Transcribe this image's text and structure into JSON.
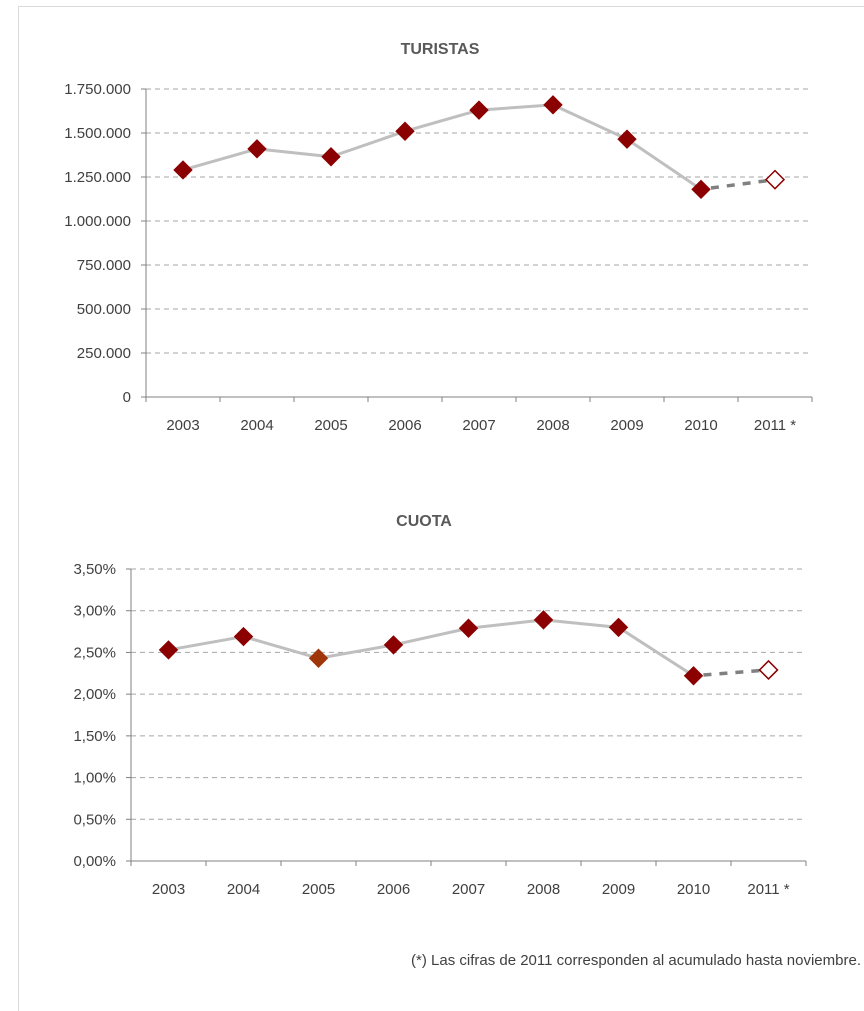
{
  "footnote": "(*) Las cifras de 2011 corresponden al acumulado hasta noviembre.",
  "colors": {
    "marker": "#8b0000",
    "marker_alt": "#a0350a",
    "line": "#bfbfbf",
    "dashed": "#808080",
    "grid": "#a6a6a6",
    "axis": "#808080"
  },
  "chart_data": [
    {
      "type": "line",
      "title": "TURISTAS",
      "categories": [
        "2003",
        "2004",
        "2005",
        "2006",
        "2007",
        "2008",
        "2009",
        "2010",
        "2011 *"
      ],
      "values": [
        1290000,
        1410000,
        1365000,
        1510000,
        1630000,
        1660000,
        1465000,
        1180000,
        1235000
      ],
      "ylim": [
        0,
        1750000
      ],
      "yticks": [
        0,
        250000,
        500000,
        750000,
        1000000,
        1250000,
        1500000,
        1750000
      ],
      "ytick_labels": [
        "0",
        "250.000",
        "500.000",
        "750.000",
        "1.000.000",
        "1.250.000",
        "1.500.000",
        "1.750.000"
      ],
      "grid": "horizontal dashed",
      "projected_last_point": true,
      "hollow_marker_indices": [
        8
      ]
    },
    {
      "type": "line",
      "title": "CUOTA",
      "categories": [
        "2003",
        "2004",
        "2005",
        "2006",
        "2007",
        "2008",
        "2009",
        "2010",
        "2011 *"
      ],
      "values": [
        2.53,
        2.69,
        2.43,
        2.59,
        2.79,
        2.89,
        2.8,
        2.22,
        2.29
      ],
      "ylim": [
        0,
        3.5
      ],
      "yticks": [
        0,
        0.5,
        1.0,
        1.5,
        2.0,
        2.5,
        3.0,
        3.5
      ],
      "ytick_labels": [
        "0,00%",
        "0,50%",
        "1,00%",
        "1,50%",
        "2,00%",
        "2,50%",
        "3,00%",
        "3,50%"
      ],
      "grid": "horizontal dashed",
      "projected_last_point": true,
      "hollow_marker_indices": [
        8
      ],
      "alt_color_marker_indices": [
        2
      ]
    }
  ]
}
